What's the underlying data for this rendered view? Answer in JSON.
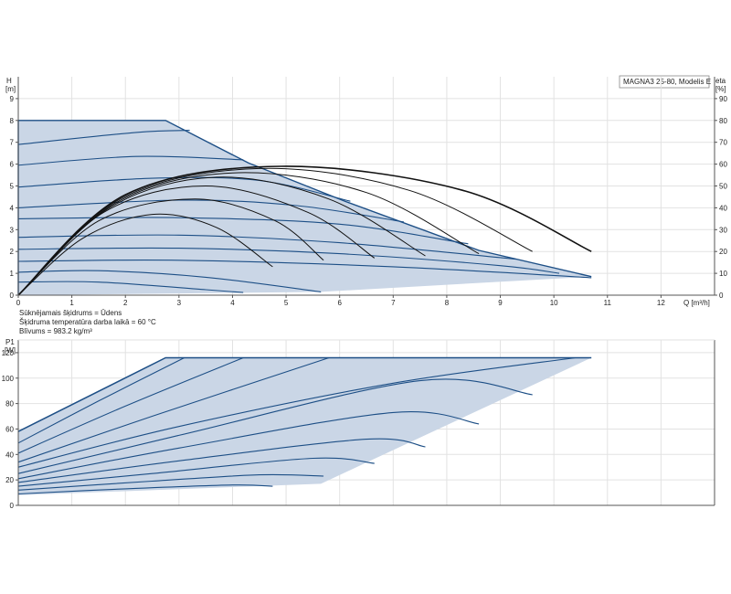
{
  "colors": {
    "region_fill": "#cad6e6",
    "curve": "#1d4f86",
    "eta": "#111111",
    "grid": "#e2e2e2"
  },
  "legend_label": "MAGNA3 25-80, Modelis E",
  "fluid_info": [
    "Sūknējamais šķidrums = Ūdens",
    "Šķidruma temperatūra darba laikā = 60 °C",
    "Blīvums = 983.2 kg/m³"
  ],
  "chart_data": [
    {
      "type": "line",
      "title": "MAGNA3 25-80, Modelis E",
      "xlabel": "Q [m³/h]",
      "ylabel": "H [m]",
      "y2label": "eta [%]",
      "xlim": [
        0,
        13
      ],
      "ylim": [
        0,
        10
      ],
      "y2lim": [
        0,
        100
      ],
      "xticks": [
        0,
        1,
        2,
        3,
        4,
        5,
        6,
        7,
        8,
        9,
        10,
        11,
        12
      ],
      "yticks": [
        0,
        1,
        2,
        3,
        4,
        5,
        6,
        7,
        8,
        9
      ],
      "y2ticks": [
        0,
        10,
        20,
        30,
        40,
        50,
        60,
        70,
        80,
        90
      ],
      "grid": true,
      "envelope": [
        [
          0,
          0
        ],
        [
          0,
          8
        ],
        [
          2.75,
          8
        ],
        [
          4.3,
          6.05
        ],
        [
          6.1,
          4.3
        ],
        [
          8.6,
          2.05
        ],
        [
          10.7,
          0.85
        ],
        [
          5.65,
          0.15
        ],
        [
          0,
          0
        ]
      ],
      "series": [
        {
          "x": [
            0,
            2.2,
            3.2
          ],
          "y": [
            6.9,
            7.45,
            7.55
          ]
        },
        {
          "x": [
            0,
            2.2,
            4.2
          ],
          "y": [
            5.95,
            6.35,
            6.2
          ]
        },
        {
          "x": [
            0,
            2.5,
            4.5,
            6.2
          ],
          "y": [
            4.95,
            5.35,
            5.25,
            4.3
          ]
        },
        {
          "x": [
            0,
            3,
            5.2,
            7.2
          ],
          "y": [
            4.0,
            4.35,
            4.1,
            3.35
          ]
        },
        {
          "x": [
            0,
            3,
            6,
            8.4
          ],
          "y": [
            3.5,
            3.55,
            3.25,
            2.35
          ]
        },
        {
          "x": [
            0,
            3,
            6,
            9.3
          ],
          "y": [
            2.65,
            2.75,
            2.4,
            1.65
          ]
        },
        {
          "x": [
            0,
            3,
            6,
            9,
            10.1
          ],
          "y": [
            2.1,
            2.15,
            1.9,
            1.35,
            1.0
          ]
        },
        {
          "x": [
            0,
            3,
            7,
            10.7
          ],
          "y": [
            1.55,
            1.6,
            1.3,
            0.8
          ]
        },
        {
          "x": [
            0,
            1.5,
            3.5,
            5.65
          ],
          "y": [
            1.05,
            1.12,
            0.82,
            0.15
          ]
        },
        {
          "x": [
            0,
            1.5,
            3.5,
            4.2
          ],
          "y": [
            0.6,
            0.6,
            0.25,
            0.12
          ]
        }
      ],
      "eta_series": [
        {
          "x": [
            0,
            1.2,
            2.5,
            3.7,
            4.75
          ],
          "y": [
            0,
            26,
            37,
            31,
            13
          ]
        },
        {
          "x": [
            0,
            1.5,
            3.3,
            4.8,
            5.7
          ],
          "y": [
            0,
            34,
            44,
            34,
            16
          ]
        },
        {
          "x": [
            0,
            1.6,
            3.5,
            5.4,
            6.65
          ],
          "y": [
            0,
            38,
            50,
            38,
            17
          ]
        },
        {
          "x": [
            0,
            1.7,
            3.7,
            5.8,
            7.6
          ],
          "y": [
            0,
            40,
            54,
            44,
            18
          ]
        },
        {
          "x": [
            0,
            1.8,
            4,
            6.5,
            8.6
          ],
          "y": [
            0,
            42,
            56,
            47,
            19
          ]
        },
        {
          "x": [
            0,
            1.9,
            4.5,
            7.3,
            9.6
          ],
          "y": [
            0,
            44,
            58,
            48,
            20
          ]
        },
        {
          "x": [
            0,
            2,
            4.9,
            8.3,
            10.7
          ],
          "y": [
            0,
            46,
            59,
            48,
            20
          ]
        }
      ]
    },
    {
      "type": "line",
      "xlabel": "",
      "ylabel": "P1 [W]",
      "xlim": [
        0,
        13
      ],
      "ylim": [
        0,
        130
      ],
      "yticks": [
        0,
        20,
        40,
        60,
        80,
        100,
        120
      ],
      "grid": true,
      "envelope": [
        [
          0,
          58
        ],
        [
          2.75,
          116
        ],
        [
          10.7,
          116
        ],
        [
          5.65,
          17
        ],
        [
          0,
          8
        ]
      ],
      "series": [
        {
          "x": [
            0,
            2.75,
            10.7
          ],
          "y": [
            58,
            116,
            116
          ]
        },
        {
          "x": [
            0,
            1.5,
            3.1
          ],
          "y": [
            49,
            82,
            116
          ]
        },
        {
          "x": [
            0,
            2,
            4.2
          ],
          "y": [
            41,
            78,
            116
          ]
        },
        {
          "x": [
            0,
            2.5,
            5.8
          ],
          "y": [
            34,
            70,
            116
          ]
        },
        {
          "x": [
            0,
            3,
            7,
            10.4
          ],
          "y": [
            30,
            62,
            96,
            116
          ]
        },
        {
          "x": [
            0,
            3,
            7.5,
            9.6
          ],
          "y": [
            25,
            55,
            98,
            87
          ]
        },
        {
          "x": [
            0,
            3,
            7,
            8.6
          ],
          "y": [
            21,
            45,
            73,
            64
          ]
        },
        {
          "x": [
            0,
            3,
            6.5,
            7.6
          ],
          "y": [
            18,
            35,
            52,
            46
          ]
        },
        {
          "x": [
            0,
            2.5,
            5.5,
            6.65
          ],
          "y": [
            15,
            25,
            37,
            33
          ]
        },
        {
          "x": [
            0,
            2.5,
            4.5,
            5.7
          ],
          "y": [
            12,
            19,
            24,
            23
          ]
        },
        {
          "x": [
            0,
            2,
            4,
            4.75
          ],
          "y": [
            9,
            13,
            16,
            15
          ]
        }
      ]
    }
  ]
}
